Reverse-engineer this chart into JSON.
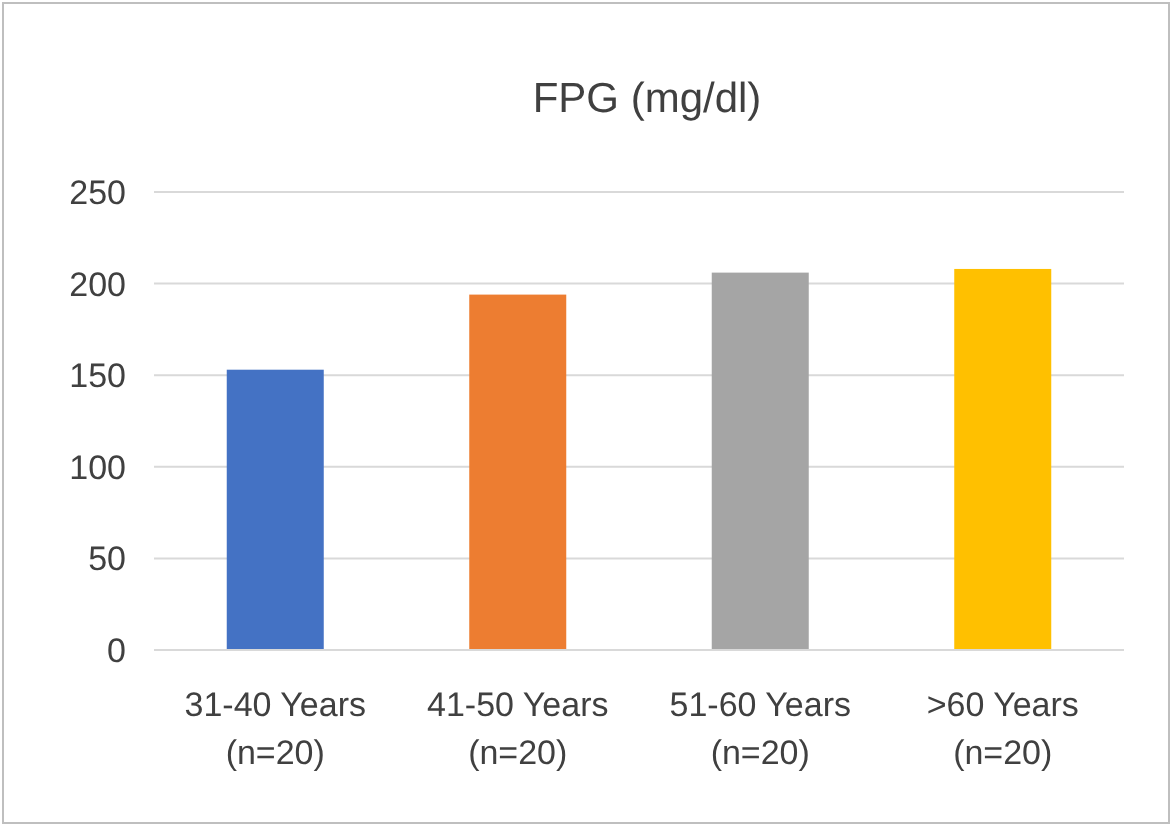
{
  "chart_data": {
    "type": "bar",
    "title": "FPG (mg/dl)",
    "categories": [
      "31-40 Years\n(n=20)",
      "41-50 Years\n(n=20)",
      "51-60 Years\n(n=20)",
      ">60 Years\n(n=20)"
    ],
    "values": [
      153,
      194,
      206,
      208
    ],
    "colors": [
      "#4472c4",
      "#ed7d31",
      "#a5a5a5",
      "#ffc000"
    ],
    "ylim": [
      0,
      250
    ],
    "yticks": [
      0,
      50,
      100,
      150,
      200,
      250
    ],
    "grid": "y"
  }
}
